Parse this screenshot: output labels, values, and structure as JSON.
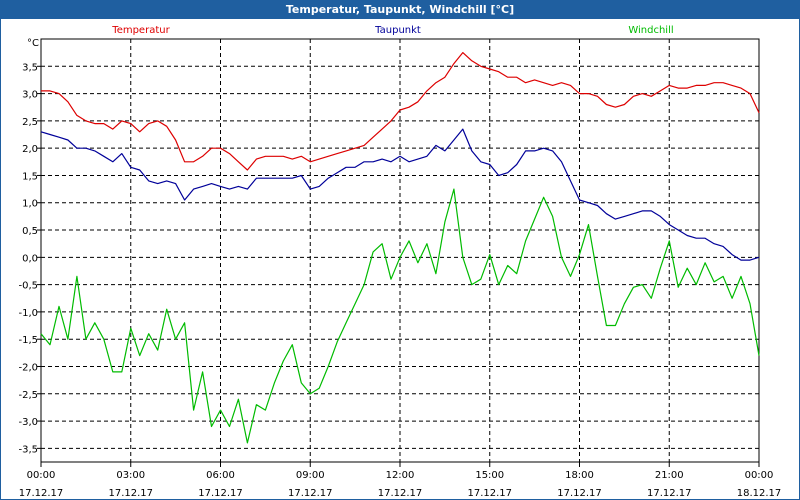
{
  "chart_data": {
    "type": "line",
    "title": "Temperatur, Taupunkt, Windchill [°C]",
    "ylabel": "°C",
    "ylim": [
      -3.75,
      4.0
    ],
    "xlim_hours": [
      0,
      24
    ],
    "grid": true,
    "yticks": [
      "3,5",
      "3,0",
      "2,5",
      "2,0",
      "1,5",
      "1,0",
      "0,5",
      "0,0",
      "-0,5",
      "-1,0",
      "-1,5",
      "-2,0",
      "-2,5",
      "-3,0",
      "-3,5"
    ],
    "ytick_values": [
      3.5,
      3.0,
      2.5,
      2.0,
      1.5,
      1.0,
      0.5,
      0.0,
      -0.5,
      -1.0,
      -1.5,
      -2.0,
      -2.5,
      -3.0,
      -3.5
    ],
    "xticks": [
      {
        "h": 0,
        "time": "00:00",
        "date": "17.12.17"
      },
      {
        "h": 3,
        "time": "03:00",
        "date": "17.12.17"
      },
      {
        "h": 6,
        "time": "06:00",
        "date": "17.12.17"
      },
      {
        "h": 9,
        "time": "09:00",
        "date": "17.12.17"
      },
      {
        "h": 12,
        "time": "12:00",
        "date": "17.12.17"
      },
      {
        "h": 15,
        "time": "15:00",
        "date": "17.12.17"
      },
      {
        "h": 18,
        "time": "18:00",
        "date": "17.12.17"
      },
      {
        "h": 21,
        "time": "21:00",
        "date": "17.12.17"
      },
      {
        "h": 24,
        "time": "00:00",
        "date": "18.12.17"
      }
    ],
    "series": [
      {
        "name": "Temperatur",
        "color": "#dd0000",
        "x": [
          0,
          0.3,
          0.6,
          0.9,
          1.2,
          1.5,
          1.8,
          2.1,
          2.4,
          2.7,
          3.0,
          3.3,
          3.6,
          3.9,
          4.2,
          4.5,
          4.8,
          5.1,
          5.4,
          5.7,
          6.0,
          6.3,
          6.6,
          6.9,
          7.2,
          7.5,
          7.8,
          8.1,
          8.4,
          8.7,
          9.0,
          9.3,
          9.6,
          9.9,
          10.2,
          10.5,
          10.8,
          11.1,
          11.4,
          11.7,
          12.0,
          12.3,
          12.6,
          12.9,
          13.2,
          13.5,
          13.8,
          14.1,
          14.4,
          14.7,
          15.0,
          15.3,
          15.6,
          15.9,
          16.2,
          16.5,
          16.8,
          17.1,
          17.4,
          17.7,
          18.0,
          18.3,
          18.6,
          18.9,
          19.2,
          19.5,
          19.8,
          20.1,
          20.4,
          20.7,
          21.0,
          21.3,
          21.6,
          21.9,
          22.2,
          22.5,
          22.8,
          23.1,
          23.4,
          23.7,
          24.0
        ],
        "values": [
          3.05,
          3.05,
          3.0,
          2.85,
          2.6,
          2.5,
          2.45,
          2.45,
          2.35,
          2.5,
          2.45,
          2.3,
          2.45,
          2.5,
          2.4,
          2.15,
          1.75,
          1.75,
          1.85,
          2.0,
          2.0,
          1.9,
          1.75,
          1.6,
          1.8,
          1.85,
          1.85,
          1.85,
          1.8,
          1.85,
          1.75,
          1.8,
          1.85,
          1.9,
          1.95,
          2.0,
          2.05,
          2.2,
          2.35,
          2.5,
          2.7,
          2.75,
          2.85,
          3.05,
          3.2,
          3.3,
          3.55,
          3.75,
          3.6,
          3.5,
          3.45,
          3.4,
          3.3,
          3.3,
          3.2,
          3.25,
          3.2,
          3.15,
          3.2,
          3.15,
          3.0,
          3.0,
          2.95,
          2.8,
          2.75,
          2.8,
          2.95,
          3.0,
          2.95,
          3.05,
          3.15,
          3.1,
          3.1,
          3.15,
          3.15,
          3.2,
          3.2,
          3.15,
          3.1,
          3.0,
          2.65
        ]
      },
      {
        "name": "Taupunkt",
        "color": "#000099",
        "x": [
          0,
          0.3,
          0.6,
          0.9,
          1.2,
          1.5,
          1.8,
          2.1,
          2.4,
          2.7,
          3.0,
          3.3,
          3.6,
          3.9,
          4.2,
          4.5,
          4.8,
          5.1,
          5.4,
          5.7,
          6.0,
          6.3,
          6.6,
          6.9,
          7.2,
          7.5,
          7.8,
          8.1,
          8.4,
          8.7,
          9.0,
          9.3,
          9.6,
          9.9,
          10.2,
          10.5,
          10.8,
          11.1,
          11.4,
          11.7,
          12.0,
          12.3,
          12.6,
          12.9,
          13.2,
          13.5,
          13.8,
          14.1,
          14.4,
          14.7,
          15.0,
          15.3,
          15.6,
          15.9,
          16.2,
          16.5,
          16.8,
          17.1,
          17.4,
          17.7,
          18.0,
          18.3,
          18.6,
          18.9,
          19.2,
          19.5,
          19.8,
          20.1,
          20.4,
          20.7,
          21.0,
          21.3,
          21.6,
          21.9,
          22.2,
          22.5,
          22.8,
          23.1,
          23.4,
          23.7,
          24.0
        ],
        "values": [
          2.3,
          2.25,
          2.2,
          2.15,
          2.0,
          2.0,
          1.95,
          1.85,
          1.75,
          1.9,
          1.65,
          1.6,
          1.4,
          1.35,
          1.4,
          1.35,
          1.05,
          1.25,
          1.3,
          1.35,
          1.3,
          1.25,
          1.3,
          1.25,
          1.45,
          1.45,
          1.45,
          1.45,
          1.45,
          1.5,
          1.25,
          1.3,
          1.45,
          1.55,
          1.65,
          1.65,
          1.75,
          1.75,
          1.8,
          1.75,
          1.85,
          1.75,
          1.8,
          1.85,
          2.05,
          1.95,
          2.15,
          2.35,
          1.95,
          1.75,
          1.7,
          1.5,
          1.55,
          1.7,
          1.95,
          1.95,
          2.0,
          1.95,
          1.75,
          1.4,
          1.05,
          1.0,
          0.95,
          0.8,
          0.7,
          0.75,
          0.8,
          0.85,
          0.85,
          0.75,
          0.6,
          0.5,
          0.4,
          0.35,
          0.35,
          0.25,
          0.2,
          0.05,
          -0.05,
          -0.05,
          0.0
        ]
      },
      {
        "name": "Windchill",
        "color": "#00bb00",
        "x": [
          0,
          0.3,
          0.6,
          0.9,
          1.2,
          1.5,
          1.8,
          2.1,
          2.4,
          2.7,
          3.0,
          3.3,
          3.6,
          3.9,
          4.2,
          4.5,
          4.8,
          5.1,
          5.4,
          5.7,
          6.0,
          6.3,
          6.6,
          6.9,
          7.2,
          7.5,
          7.8,
          8.1,
          8.4,
          8.7,
          9.0,
          9.3,
          9.6,
          9.9,
          10.2,
          10.5,
          10.8,
          11.1,
          11.4,
          11.7,
          12.0,
          12.3,
          12.6,
          12.9,
          13.2,
          13.5,
          13.8,
          14.1,
          14.4,
          14.7,
          15.0,
          15.3,
          15.6,
          15.9,
          16.2,
          16.5,
          16.8,
          17.1,
          17.4,
          17.7,
          18.0,
          18.3,
          18.6,
          18.9,
          19.2,
          19.5,
          19.8,
          20.1,
          20.4,
          20.7,
          21.0,
          21.3,
          21.6,
          21.9,
          22.2,
          22.5,
          22.8,
          23.1,
          23.4,
          23.7,
          24.0
        ],
        "values": [
          -1.4,
          -1.6,
          -0.9,
          -1.5,
          -0.35,
          -1.5,
          -1.2,
          -1.5,
          -2.1,
          -2.1,
          -1.3,
          -1.8,
          -1.4,
          -1.7,
          -0.95,
          -1.5,
          -1.2,
          -2.8,
          -2.1,
          -3.1,
          -2.8,
          -3.1,
          -2.6,
          -3.4,
          -2.7,
          -2.8,
          -2.3,
          -1.9,
          -1.6,
          -2.3,
          -2.5,
          -2.4,
          -2.0,
          -1.55,
          -1.2,
          -0.85,
          -0.5,
          0.1,
          0.25,
          -0.4,
          0.0,
          0.3,
          -0.1,
          0.25,
          -0.3,
          0.65,
          1.25,
          0.0,
          -0.5,
          -0.4,
          0.05,
          -0.5,
          -0.15,
          -0.3,
          0.3,
          0.7,
          1.1,
          0.75,
          0.0,
          -0.35,
          0.05,
          0.6,
          -0.35,
          -1.25,
          -1.25,
          -0.85,
          -0.55,
          -0.5,
          -0.75,
          -0.2,
          0.3,
          -0.55,
          -0.2,
          -0.5,
          -0.1,
          -0.45,
          -0.35,
          -0.75,
          -0.35,
          -0.85,
          -1.8
        ]
      }
    ]
  }
}
